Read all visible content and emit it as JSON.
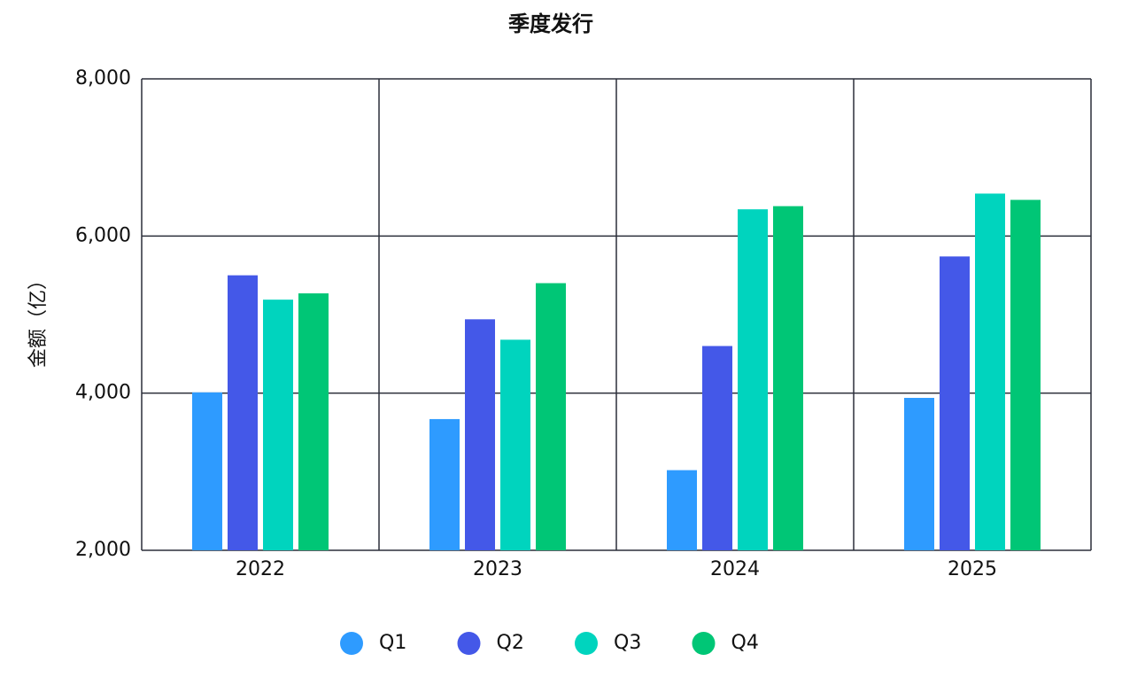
{
  "chart_data": {
    "type": "bar",
    "title": "季度发行",
    "y_label": "金额（亿）",
    "categories": [
      "2022",
      "2023",
      "2024",
      "2025"
    ],
    "series": [
      {
        "name": "Q1",
        "color": "#2e9bff",
        "values": [
          4010,
          3670,
          3020,
          3940
        ]
      },
      {
        "name": "Q2",
        "color": "#4458e8",
        "values": [
          5500,
          4940,
          4600,
          5740
        ]
      },
      {
        "name": "Q3",
        "color": "#00d4be",
        "values": [
          5190,
          4680,
          6340,
          6540
        ]
      },
      {
        "name": "Q4",
        "color": "#00c676",
        "values": [
          5270,
          5400,
          6380,
          6460
        ]
      }
    ],
    "ylim": [
      2000,
      8000
    ],
    "yticks": [
      {
        "value": 2000,
        "label": "2,000"
      },
      {
        "value": 4000,
        "label": "4,000"
      },
      {
        "value": 6000,
        "label": "6,000"
      },
      {
        "value": 8000,
        "label": "8,000"
      }
    ],
    "grid": true,
    "legend": "bottom"
  }
}
